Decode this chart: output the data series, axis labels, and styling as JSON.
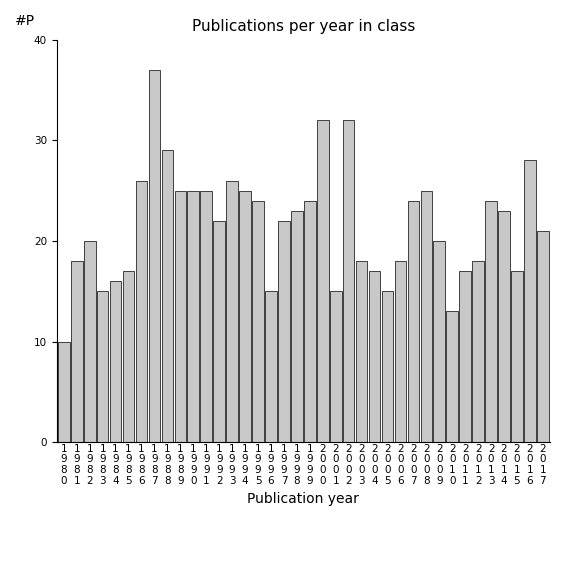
{
  "title": "Publications per year in class",
  "xlabel": "Publication year",
  "ylabel": "#P",
  "years": [
    "1980",
    "1981",
    "1982",
    "1983",
    "1984",
    "1985",
    "1986",
    "1987",
    "1988",
    "1989",
    "1990",
    "1991",
    "1992",
    "1993",
    "1994",
    "1995",
    "1996",
    "1997",
    "1998",
    "1999",
    "2000",
    "2001",
    "2002",
    "2003",
    "2004",
    "2005",
    "2006",
    "2007",
    "2008",
    "2009",
    "2010",
    "2011",
    "2012",
    "2013",
    "2014",
    "2015",
    "2016",
    "2017"
  ],
  "values": [
    10,
    18,
    20,
    15,
    16,
    17,
    26,
    37,
    29,
    25,
    25,
    25,
    22,
    26,
    25,
    24,
    15,
    22,
    23,
    24,
    32,
    15,
    32,
    18,
    17,
    15,
    18,
    24,
    25,
    20,
    13,
    17,
    18,
    24,
    23,
    17,
    28,
    21
  ],
  "bar_color": "#c8c8c8",
  "bar_edge_color": "#000000",
  "ylim": [
    0,
    40
  ],
  "yticks": [
    0,
    10,
    20,
    30,
    40
  ],
  "title_fontsize": 11,
  "axis_fontsize": 10,
  "tick_fontsize": 7.5
}
